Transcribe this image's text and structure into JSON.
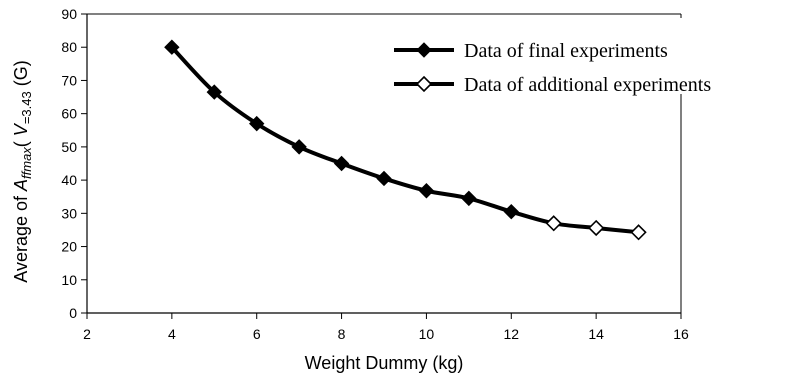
{
  "chart_data": {
    "type": "line",
    "xlabel": "Weight Dummy (kg)",
    "ylabel": {
      "prefix": "Average of  ",
      "A": "A",
      "A_sub": "ffmax",
      "V": "V",
      "V_sub": "=3.43",
      "suffix": " (G)"
    },
    "xlim": [
      2,
      16
    ],
    "ylim": [
      0,
      90
    ],
    "x_ticks": [
      "2",
      "4",
      "6",
      "8",
      "10",
      "12",
      "14",
      "16"
    ],
    "y_ticks": [
      "0",
      "10",
      "20",
      "30",
      "40",
      "50",
      "60",
      "70",
      "80",
      "90"
    ],
    "grid": false,
    "legend_position": "top-right",
    "line_color": "#000000",
    "series": [
      {
        "name": "Data of final experiments",
        "marker": "filled-diamond",
        "x": [
          4,
          5,
          6,
          7,
          8,
          9,
          10,
          11,
          12
        ],
        "y": [
          80,
          66.5,
          57,
          50,
          45,
          40.5,
          36.8,
          34.5,
          30.5
        ]
      },
      {
        "name": "Data of additional experiments",
        "marker": "open-diamond",
        "x": [
          13,
          14,
          15
        ],
        "y": [
          27,
          25.6,
          24.3
        ]
      }
    ]
  }
}
